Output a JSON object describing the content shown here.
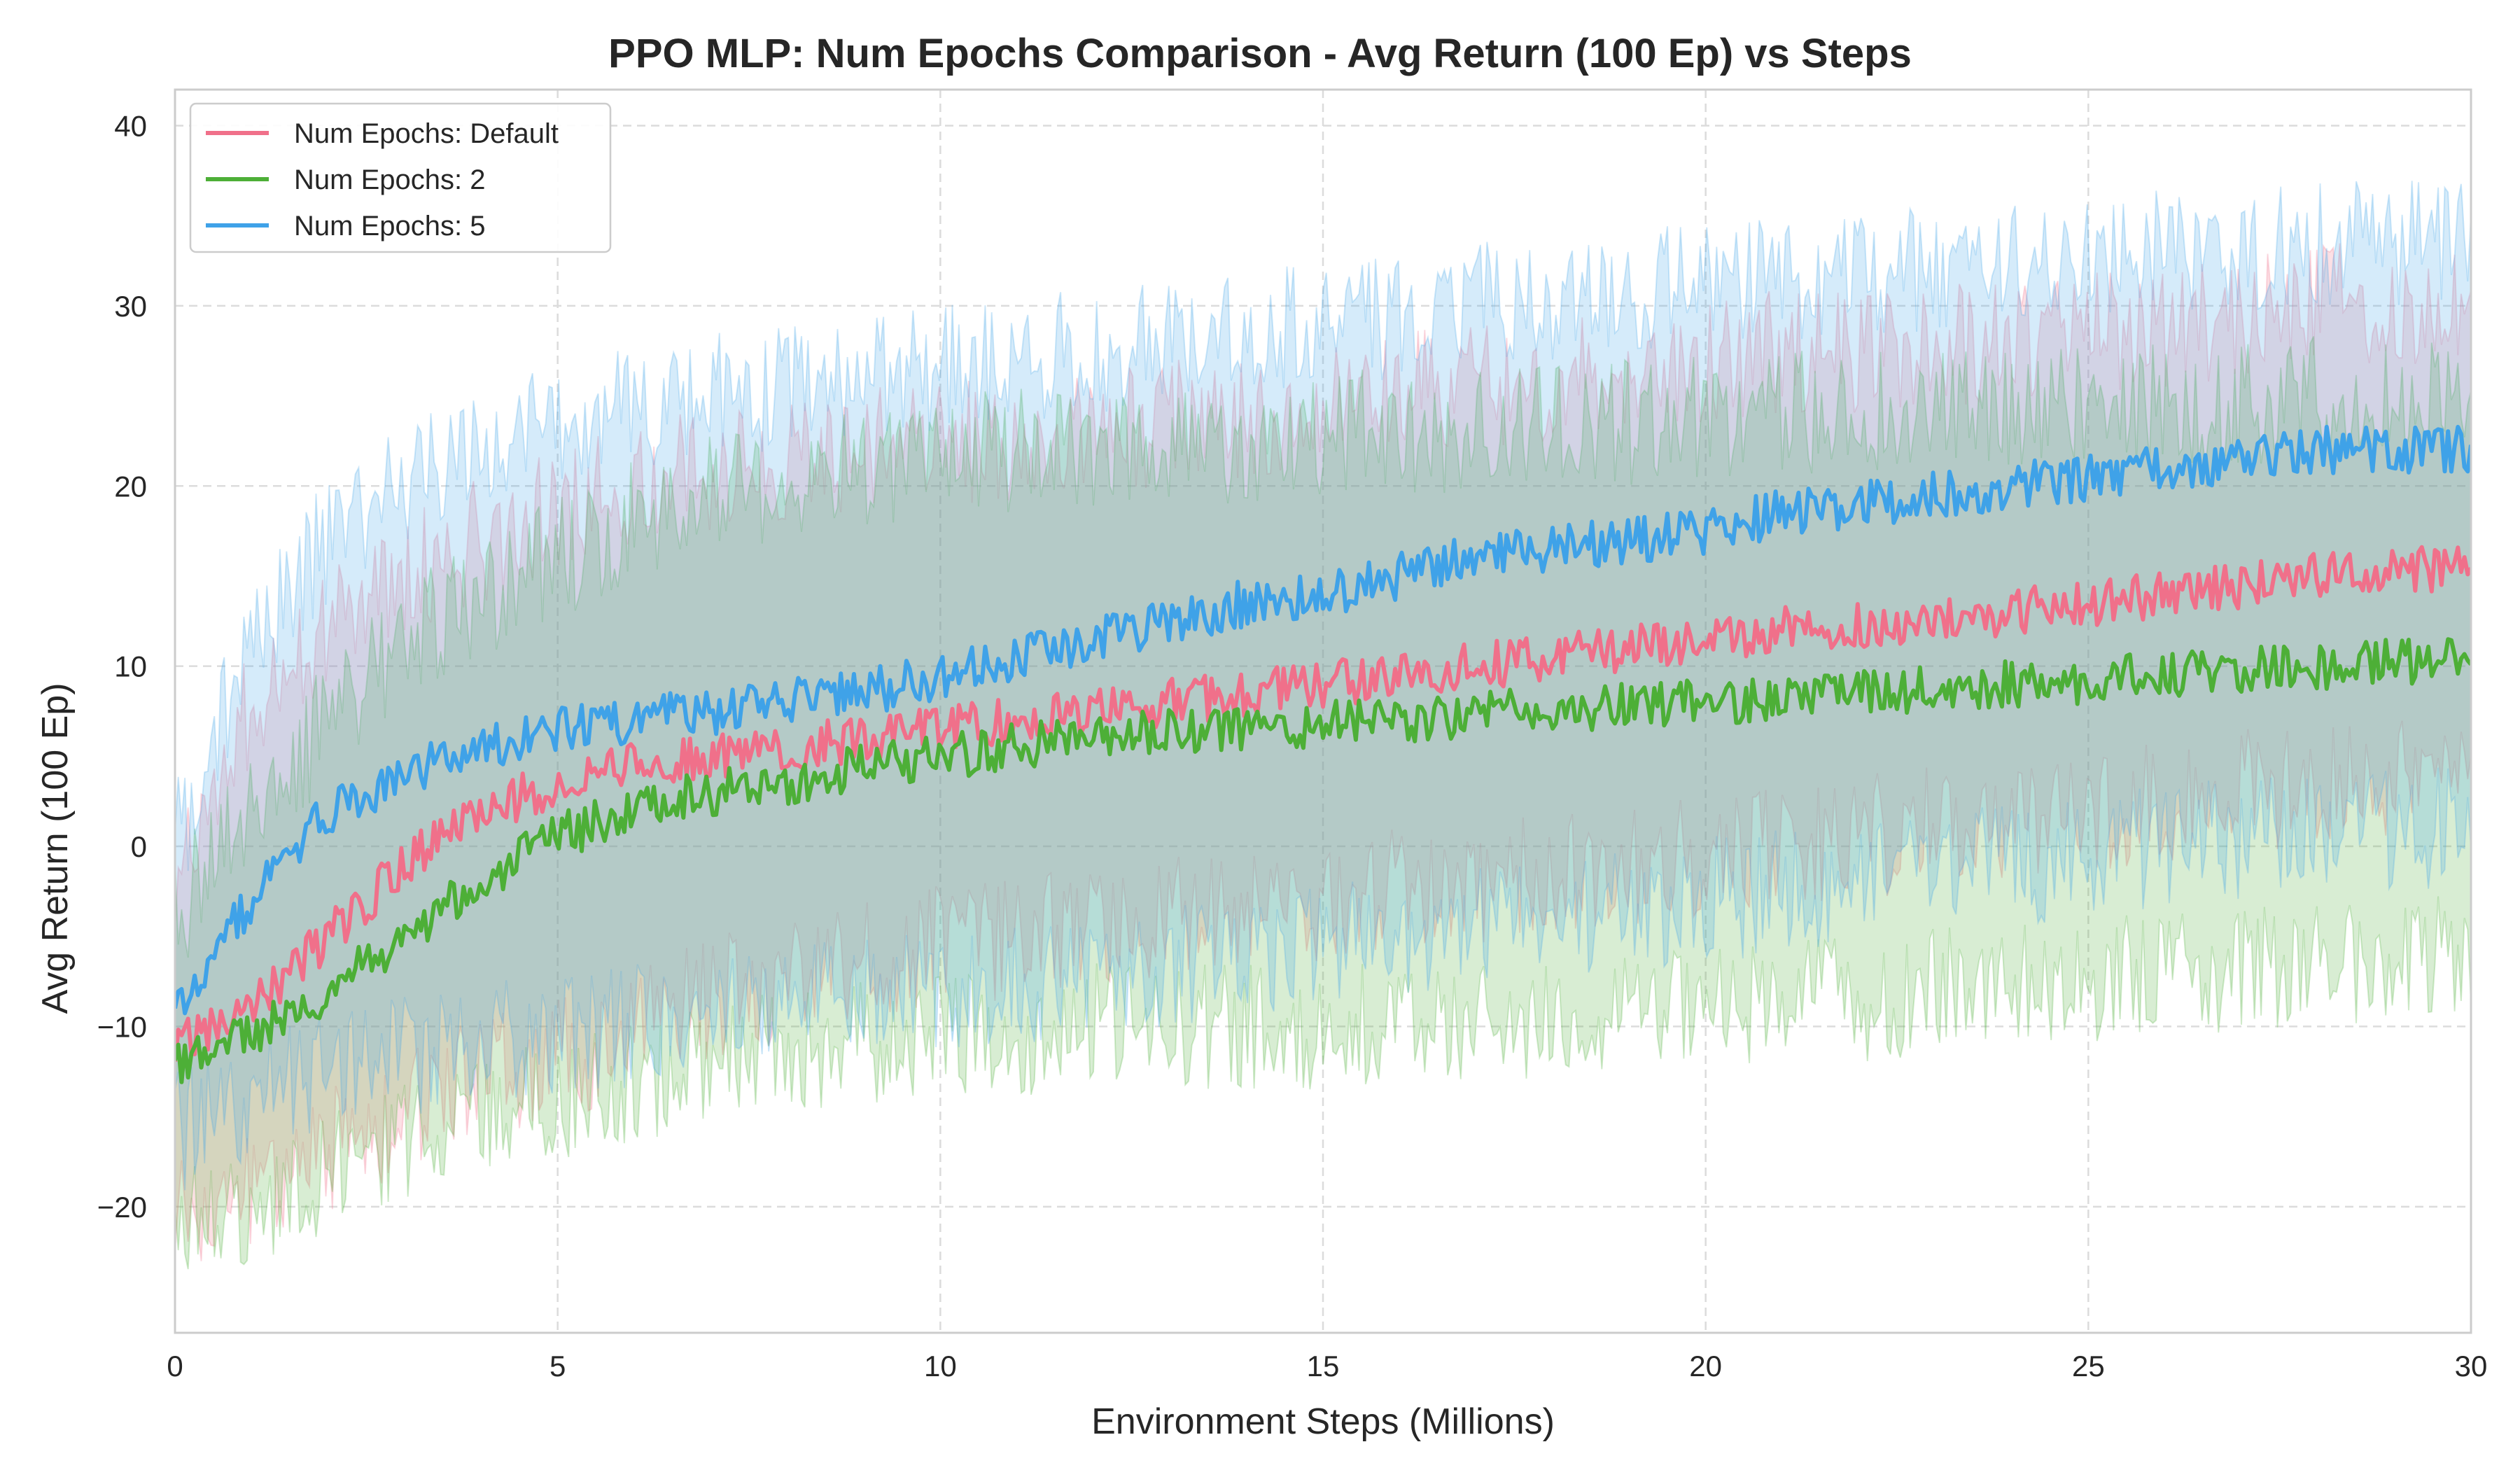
{
  "chart_data": {
    "type": "line",
    "title": "PPO MLP: Num Epochs Comparison - Avg Return (100 Ep) vs Steps",
    "xlabel": "Environment Steps (Millions)",
    "ylabel": "Avg Return (100 Ep)",
    "xlim": [
      0,
      30
    ],
    "ylim": [
      -27,
      42
    ],
    "xticks": [
      0,
      5,
      10,
      15,
      20,
      25,
      30
    ],
    "yticks": [
      -20,
      -10,
      0,
      10,
      20,
      30,
      40
    ],
    "ytick_labels": [
      "−20",
      "−10",
      "0",
      "10",
      "20",
      "30",
      "40"
    ],
    "grid": true,
    "legend_position": "top-left",
    "shaded_band": "min-max across runs",
    "series": [
      {
        "name": "Num Epochs: Default",
        "color": "#f0708a",
        "x": [
          0,
          1,
          2,
          3,
          4,
          5,
          6,
          7,
          8,
          9,
          10,
          11,
          12,
          13,
          14,
          15,
          16,
          17,
          18,
          19,
          20,
          21,
          22,
          23,
          24,
          25,
          26,
          27,
          28,
          29,
          30
        ],
        "mean": [
          -11,
          -9,
          -5,
          -1,
          2,
          3.5,
          4.5,
          5,
          5.5,
          6,
          6.5,
          7,
          7.5,
          8,
          8.5,
          9,
          9.5,
          10,
          10.5,
          11,
          11.5,
          12,
          12.2,
          12.5,
          13,
          13.5,
          14,
          14.5,
          15,
          15.2,
          15.5
        ],
        "upper": [
          -3,
          8,
          12,
          15,
          17,
          19,
          20,
          21,
          21.5,
          22,
          22.5,
          22.5,
          23,
          23.5,
          24,
          24.5,
          25,
          25.5,
          26,
          26.5,
          27,
          27.5,
          27.5,
          28,
          28,
          28.5,
          29,
          29.5,
          30,
          30,
          30
        ],
        "lower": [
          -20,
          -19,
          -17,
          -15,
          -13,
          -12,
          -10,
          -8.5,
          -7.5,
          -6.5,
          -5.5,
          -5,
          -4.5,
          -4,
          -3.5,
          -3,
          -2.5,
          -2,
          -1.5,
          -1,
          -0.5,
          0,
          0.5,
          1,
          1.5,
          2,
          2.5,
          3,
          3.5,
          4,
          4
        ]
      },
      {
        "name": "Num Epochs: 2",
        "color": "#4daf37",
        "x": [
          0,
          1,
          2,
          3,
          4,
          5,
          6,
          7,
          8,
          9,
          10,
          11,
          12,
          13,
          14,
          15,
          16,
          17,
          18,
          19,
          20,
          21,
          22,
          23,
          24,
          25,
          26,
          27,
          28,
          29,
          30
        ],
        "mean": [
          -12,
          -10.5,
          -8,
          -5,
          -2,
          0.5,
          2,
          3,
          3.5,
          4.5,
          5,
          5.5,
          6,
          6.3,
          6.5,
          6.8,
          7,
          7.3,
          7.5,
          7.8,
          8,
          8.3,
          8.5,
          8.7,
          9,
          9.2,
          9.5,
          9.8,
          10,
          10.2,
          10.5
        ],
        "upper": [
          -4,
          2,
          7,
          11,
          14,
          16,
          18,
          19.5,
          20.5,
          21,
          21.5,
          22,
          22,
          22.5,
          22.5,
          23,
          23,
          23,
          23.5,
          23.5,
          24,
          24,
          24,
          24,
          24,
          24.5,
          24.5,
          24.5,
          25,
          25,
          25
        ],
        "lower": [
          -20,
          -20.5,
          -18,
          -16,
          -15,
          -14,
          -13,
          -12,
          -11.5,
          -11,
          -10.5,
          -10.5,
          -10,
          -10,
          -10,
          -10,
          -10,
          -10,
          -9.5,
          -9.5,
          -9,
          -8.5,
          -8.5,
          -8,
          -7.5,
          -7.5,
          -7,
          -7,
          -6.5,
          -6.5,
          -6
        ]
      },
      {
        "name": "Num Epochs: 5",
        "color": "#3fa2e8",
        "x": [
          0,
          1,
          2,
          3,
          4,
          5,
          6,
          7,
          8,
          9,
          10,
          11,
          12,
          13,
          14,
          15,
          16,
          17,
          18,
          19,
          20,
          21,
          22,
          23,
          24,
          25,
          26,
          27,
          28,
          29,
          30
        ],
        "mean": [
          -9,
          -3,
          2,
          4,
          5.5,
          6.5,
          7,
          7.5,
          8,
          8.5,
          9.5,
          10.5,
          11.5,
          12.5,
          13.5,
          14,
          15,
          16,
          16.5,
          17,
          17.5,
          18.5,
          19,
          19.5,
          20,
          20.5,
          21,
          21.5,
          22,
          22,
          22
        ],
        "upper": [
          0,
          12,
          17,
          20,
          22,
          23.5,
          24.5,
          25,
          25.5,
          26,
          26.5,
          27,
          27.5,
          28,
          28.5,
          29,
          29.5,
          30,
          30.5,
          31,
          31,
          31.5,
          32,
          32,
          32.5,
          32.5,
          33,
          33,
          33.5,
          33.5,
          34
        ],
        "lower": [
          -16,
          -14,
          -12,
          -11.5,
          -11,
          -10.5,
          -10,
          -9.5,
          -9,
          -8.5,
          -8,
          -7.5,
          -7,
          -6.5,
          -6,
          -5.5,
          -5,
          -4.5,
          -4,
          -3.5,
          -3,
          -2.5,
          -2,
          -1.5,
          -1,
          -0.5,
          0,
          0.5,
          1,
          1,
          1
        ]
      }
    ]
  }
}
